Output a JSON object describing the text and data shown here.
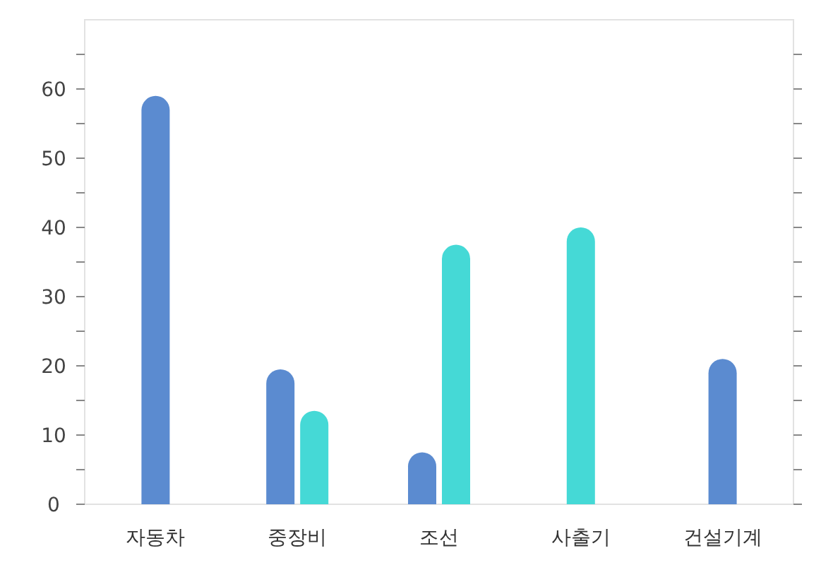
{
  "chart_data": {
    "type": "bar",
    "categories": [
      "자동차",
      "중장비",
      "조선",
      "사출기",
      "건설기계"
    ],
    "series": [
      {
        "color": "#5b8bd0",
        "values": [
          59,
          19.5,
          7.5,
          null,
          21
        ]
      },
      {
        "color": "#45d9d6",
        "values": [
          null,
          13.5,
          37.5,
          40,
          null
        ]
      }
    ],
    "ylim": [
      0,
      70
    ],
    "yticks": [
      0,
      {
        "value": 5,
        "label": null
      },
      10,
      {
        "value": 15,
        "label": null
      },
      20,
      {
        "value": 25,
        "label": null
      },
      30,
      {
        "value": 35,
        "label": null
      },
      40,
      {
        "value": 45,
        "label": null
      },
      50,
      {
        "value": 55,
        "label": null
      },
      60,
      {
        "value": 65,
        "label": null
      }
    ],
    "grid": false
  }
}
